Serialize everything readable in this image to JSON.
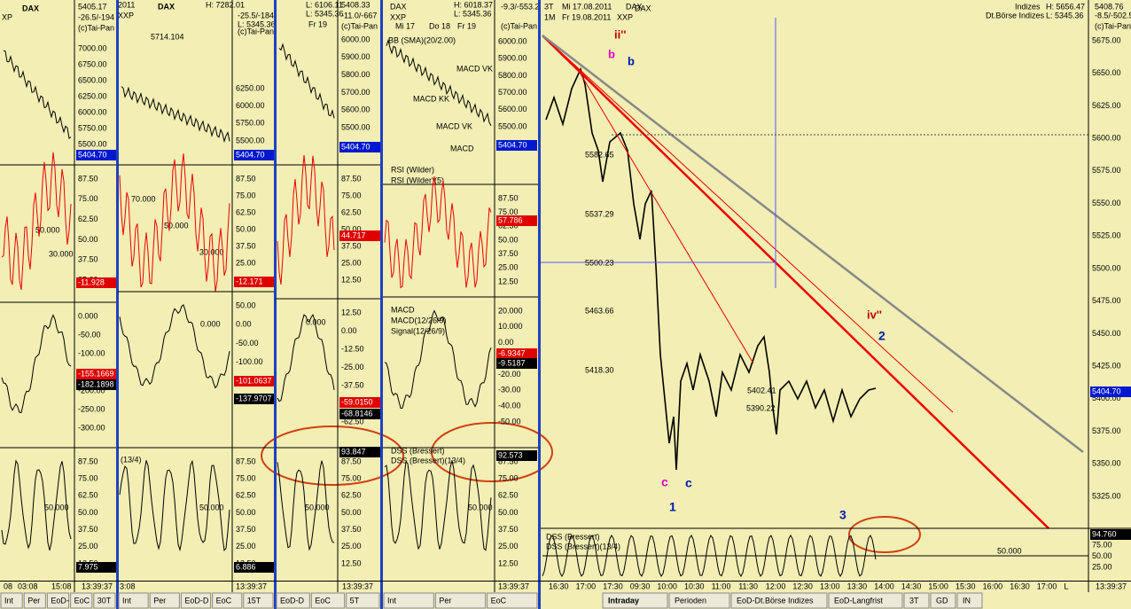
{
  "panels": [
    {
      "header": [
        "DAX",
        "5405.17",
        "-26.5/-194",
        "XP",
        "(c)Tai-Pan"
      ],
      "subs": [
        {
          "ticks": [
            "7000.00",
            "6750.00",
            "6500.00",
            "6250.00",
            "6000.00",
            "5750.00",
            "5500.00"
          ],
          "badges": [
            "5404.70"
          ],
          "notes": []
        },
        {
          "ticks": [
            "87.50",
            "75.00",
            "62.50",
            "50.00",
            "37.50",
            "25.00"
          ],
          "badges": [
            "-11.928"
          ],
          "notes": [
            "50.000",
            "30.000"
          ]
        },
        {
          "ticks": [
            "0.000",
            "-50.00",
            "-100.00",
            "-150.00",
            "-200.00",
            "-250.00",
            "-300.00"
          ],
          "badges": [
            "-155.1669",
            "-182.1898"
          ],
          "notes": []
        },
        {
          "ticks": [
            "87.50",
            "75.00",
            "62.50",
            "50.00",
            "37.50",
            "25.00",
            "12.50"
          ],
          "badges": [
            "7.975"
          ],
          "notes": [
            "50.000"
          ]
        }
      ],
      "time": [
        "08",
        "03:08",
        "15:08",
        "13:39:37"
      ],
      "tabs": [
        "Int",
        "Per",
        "EoD-",
        "EoC",
        "30T"
      ]
    },
    {
      "header": [
        "2011",
        "DAX",
        "H: 7282.01",
        "-25.5/-184",
        "XXP",
        "L: 5345.36",
        "(c)Tai-Pan",
        "5714.104"
      ],
      "subs": [
        {
          "ticks": [
            "6250.00",
            "6000.00",
            "5750.00",
            "5500.00"
          ],
          "badges": [
            "5404.70"
          ],
          "notes": []
        },
        {
          "ticks": [
            "87.50",
            "75.00",
            "62.50",
            "50.00",
            "37.50",
            "25.00",
            "12.50"
          ],
          "badges": [
            "-12.171"
          ],
          "notes": [
            "70.000",
            "50.000",
            "30.000"
          ]
        },
        {
          "ticks": [
            "50.00",
            "0.00",
            "-50.00",
            "-100.00",
            "-150.00",
            "-200.00"
          ],
          "badges": [
            "-101.0637",
            "-137.9707"
          ],
          "notes": [
            "0.000"
          ]
        },
        {
          "ticks": [
            "87.50",
            "75.00",
            "62.50",
            "50.00",
            "37.50",
            "25.00",
            "12.50"
          ],
          "badges": [
            "6.886"
          ],
          "notes": [
            "50.000",
            "(13/4)"
          ]
        }
      ],
      "time": [
        "3:08",
        "13:39:37"
      ],
      "tabs": [
        "Int",
        "Per",
        "EoD-D",
        "EoC",
        "15T"
      ]
    },
    {
      "header": [
        "L: 6106.11",
        "5408.33",
        "L: 5345.36",
        "-11.0/-667",
        "(c)Tai-Pan",
        "Fr 19"
      ],
      "subs": [
        {
          "ticks": [
            "6000.00",
            "5900.00",
            "5800.00",
            "5700.00",
            "5600.00",
            "5500.00"
          ],
          "badges": [
            "5404.70"
          ],
          "notes": []
        },
        {
          "ticks": [
            "87.50",
            "75.00",
            "62.50",
            "50.00",
            "37.50",
            "25.00",
            "12.50"
          ],
          "badges": [
            "44.717"
          ],
          "notes": []
        },
        {
          "ticks": [
            "12.50",
            "0.00",
            "-12.50",
            "-25.00",
            "-37.50",
            "-50.00",
            "-62.50"
          ],
          "badges": [
            "-59.0150",
            "-68.8146"
          ],
          "notes": [
            "0.000"
          ]
        },
        {
          "ticks": [
            "87.50",
            "75.00",
            "62.50",
            "50.00",
            "37.50",
            "25.00",
            "12.50"
          ],
          "badges": [
            "93.847"
          ],
          "notes": [
            "50.000"
          ]
        }
      ],
      "time": [
        "13:39:37"
      ],
      "tabs": [
        "EoD-D",
        "EoC",
        "5T"
      ]
    },
    {
      "header": [
        "DAX",
        "XXP",
        "H: 6018.37",
        "L: 5345.36",
        "-9.3/-553.2",
        "(c)Tai-Pan",
        "Mi 17",
        "Do 18",
        "Fr 19"
      ],
      "subs": [
        {
          "ticks": [
            "6000.00",
            "5900.00",
            "5800.00",
            "5700.00",
            "5600.00",
            "5500.00"
          ],
          "badges": [
            "5404.70"
          ],
          "notes": [
            "BB (SMA)(20/2.00)",
            "MACD VK",
            "MACD KK",
            "MACD VK",
            "MACD"
          ]
        },
        {
          "ticks": [
            "87.50",
            "75.00",
            "62.50",
            "50.00",
            "37.50",
            "25.00",
            "12.50"
          ],
          "badges": [
            "57.786"
          ],
          "notes": [
            "RSI (Wilder)",
            "RSI (Wilder)(5)"
          ]
        },
        {
          "ticks": [
            "20.000",
            "10.000",
            "0.00",
            "-10.00",
            "-20.00",
            "-30.00",
            "-40.00",
            "-50.00"
          ],
          "badges": [
            "-6.9347",
            "-9.5187"
          ],
          "notes": [
            "MACD",
            "MACD(12/26/9)",
            "Signal(12/26/9)"
          ]
        },
        {
          "ticks": [
            "87.50",
            "75.00",
            "62.50",
            "50.00",
            "37.50",
            "25.00",
            "12.50"
          ],
          "badges": [
            "92.573"
          ],
          "notes": [
            "DSS (Bressert)",
            "DSS (Bressert)(13/4)",
            "50.000"
          ]
        }
      ],
      "time": [
        "13:39:37"
      ],
      "tabs": [
        "Int",
        "Per",
        "EoC"
      ]
    }
  ],
  "main": {
    "header": [
      "3T",
      "1M",
      "Mi 17.08.2011",
      "Fr 19.08.2011",
      "DAX",
      "XXP",
      "DAX",
      "Indizes",
      "Dt.Börse Indizes",
      "H: 5656.47",
      "L: 5345.36",
      "5408.76",
      "-8.5/-502.5",
      "(c)Tai-Pan"
    ],
    "ticks": [
      "5675.00",
      "5650.00",
      "5625.00",
      "5600.00",
      "5575.00",
      "5550.00",
      "5525.00",
      "5500.00",
      "5475.00",
      "5450.00",
      "5425.00",
      "5400.00",
      "5375.00",
      "5350.00",
      "5325.00"
    ],
    "badge": "5404.70",
    "waves": [
      "ii''",
      "b",
      "b",
      "iv''",
      "2",
      "c",
      "c",
      "1",
      "3"
    ],
    "levels": [
      "5582.65",
      "5537.29",
      "5500.23",
      "5463.66",
      "5418.30",
      "5402.41",
      "5390.22"
    ],
    "dss": {
      "notes": [
        "DSS (Bressert)",
        "DSS (Bressert)(13/4)",
        "50.000"
      ],
      "ticks": [
        "75.00",
        "50.00",
        "25.00"
      ],
      "badge": "94.760"
    },
    "time": [
      "16:30",
      "17:00",
      "17:30",
      "09:30",
      "10:00",
      "10:30",
      "11:00",
      "11:30",
      "12:00",
      "12:30",
      "13:00",
      "13:30",
      "14:00",
      "14:30",
      "15:00",
      "15:30",
      "16:00",
      "16:30",
      "17:00",
      "L",
      "13:39:37"
    ],
    "tabs": [
      "Intraday",
      "Perioden",
      "EoD-Dt.Börse Indizes",
      "EoD-Langfrist",
      "3T",
      "GD",
      "IN"
    ]
  }
}
